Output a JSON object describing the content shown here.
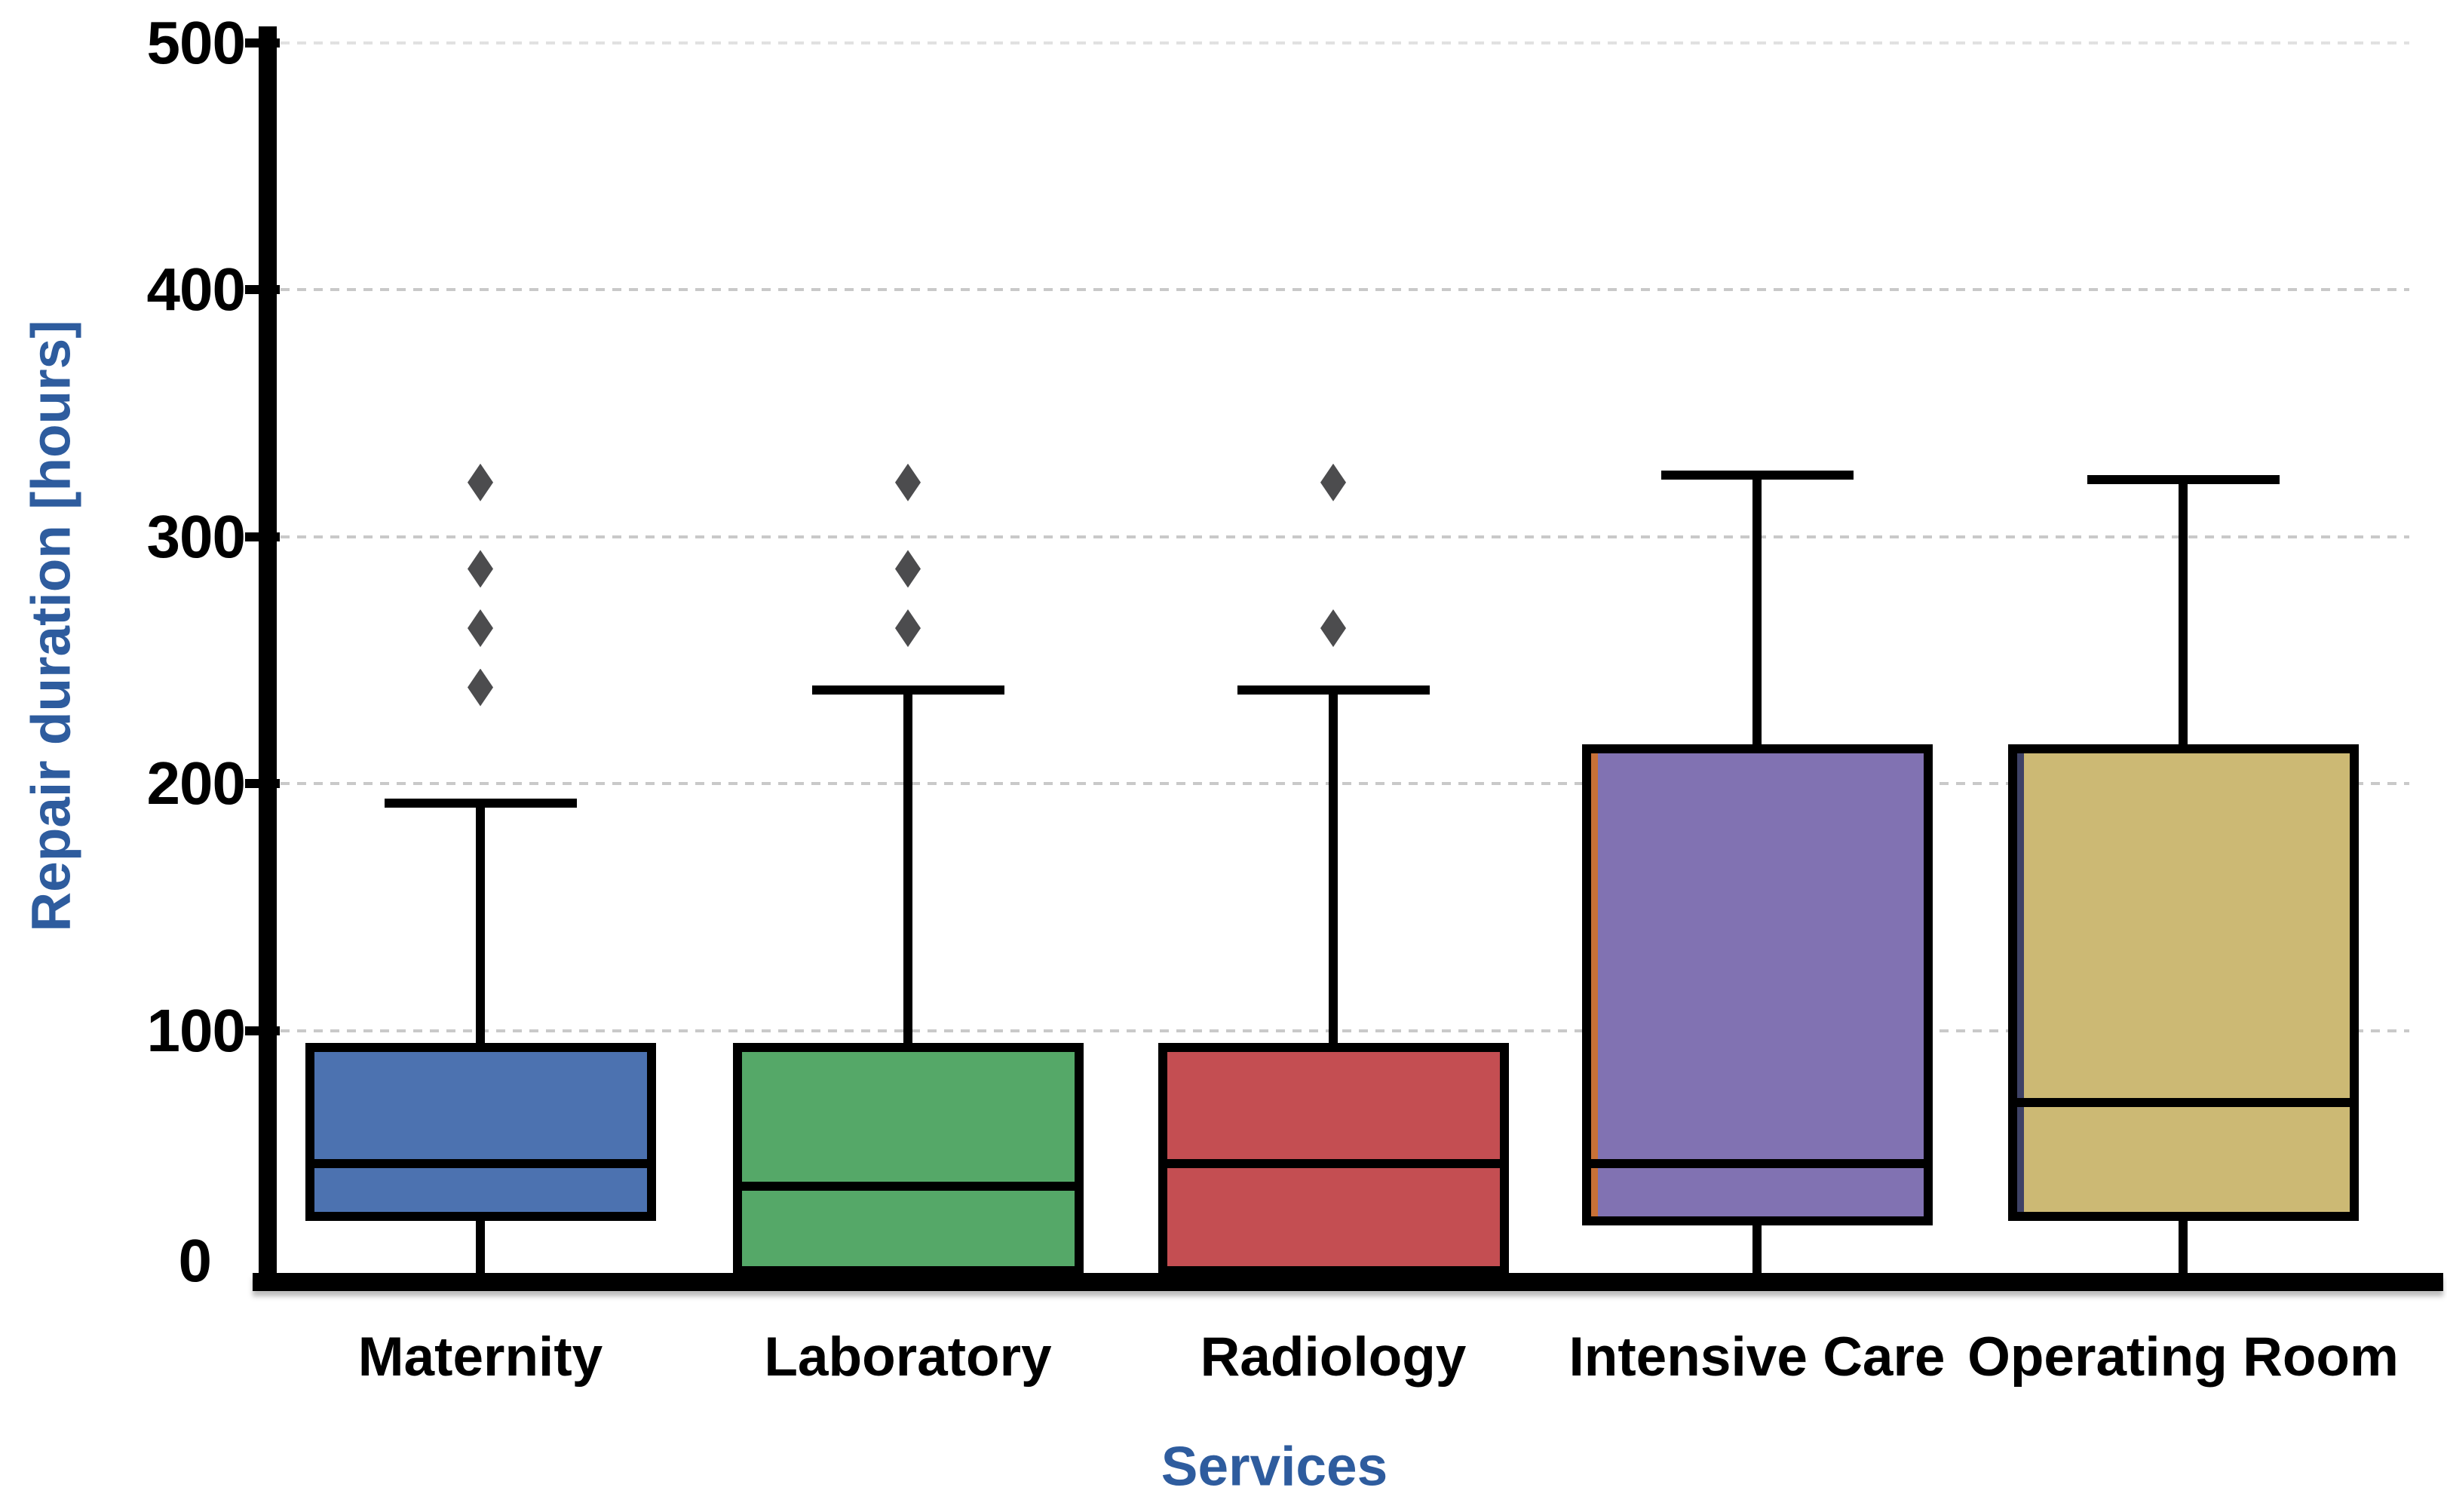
{
  "colors": {
    "axis_title": "#2E5C9E",
    "tick_label": "#000000",
    "line": "#000000",
    "grid": "#C9C9C9",
    "outlier": "#4C4C4E",
    "background": "#FFFFFF"
  },
  "chart_data": {
    "type": "box",
    "title": "",
    "xlabel": "Services",
    "ylabel": "Repair duration [hours]",
    "ylim": [
      0,
      500
    ],
    "yticks": [
      0,
      100,
      200,
      300,
      400,
      500
    ],
    "grid": "horizontal-dashed",
    "legend": "none",
    "categories": [
      "Maternity",
      "Laboratory",
      "Radiology",
      "Intensive Care",
      "Operating Room"
    ],
    "outlier_color": "#4C4C4E",
    "series": [
      {
        "name": "Maternity",
        "color": "#4C72B0",
        "whisker_low": 0,
        "q1": 23,
        "median": 46,
        "q3": 95,
        "whisker_high": 192,
        "outliers": [
          239,
          263,
          287,
          322
        ]
      },
      {
        "name": "Laboratory",
        "color": "#55A868",
        "whisker_low": 0,
        "q1": 1,
        "median": 37,
        "q3": 95,
        "whisker_high": 238,
        "outliers": [
          263,
          287,
          322
        ]
      },
      {
        "name": "Radiology",
        "color": "#C44E52",
        "whisker_low": 0,
        "q1": 1,
        "median": 46,
        "q3": 95,
        "whisker_high": 238,
        "outliers": [
          263,
          322
        ]
      },
      {
        "name": "Intensive Care",
        "color": "#8172B2",
        "accent_left": "#C87137",
        "whisker_low": 0,
        "q1": 21,
        "median": 46,
        "q3": 216,
        "whisker_high": 325,
        "outliers": []
      },
      {
        "name": "Operating Room",
        "color": "#CCB974",
        "accent_left": "#3E4266",
        "whisker_low": 0,
        "q1": 23,
        "median": 71,
        "q3": 216,
        "whisker_high": 323,
        "outliers": []
      }
    ]
  }
}
